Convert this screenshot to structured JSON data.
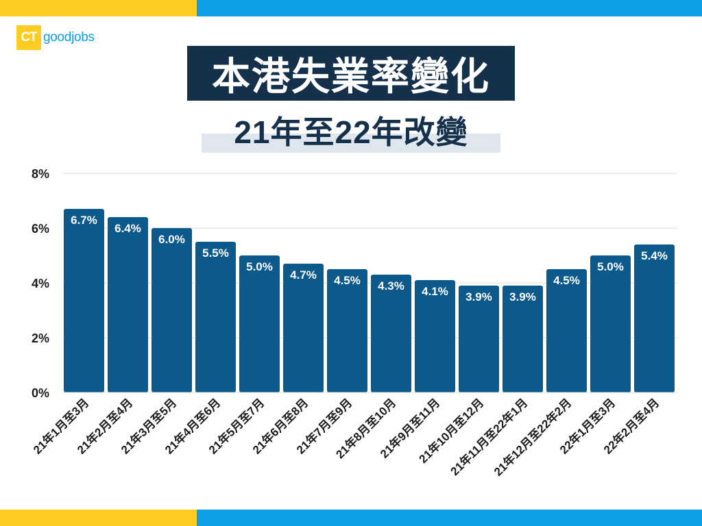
{
  "brand": {
    "logo_mark": "CT",
    "logo_text": "goodjobs",
    "yellow": "#fdcb21",
    "blue": "#0da0e4"
  },
  "title": "本港失業率變化",
  "subtitle": "21年至22年改變",
  "chart_data": {
    "type": "bar",
    "title": "本港失業率變化",
    "subtitle": "21年至22年改變",
    "categories": [
      "21年1月至3月",
      "21年2月至4月",
      "21年3月至5月",
      "21年4月至6月",
      "21年5月至7月",
      "21年6月至8月",
      "21年7月至9月",
      "21年8月至10月",
      "21年9月至11月",
      "21年10月至12月",
      "21年11月至22年1月",
      "21年12月至22年2月",
      "22年1月至3月",
      "22年2月至4月"
    ],
    "values": [
      6.7,
      6.4,
      6.0,
      5.5,
      5.0,
      4.7,
      4.5,
      4.3,
      4.1,
      3.9,
      3.9,
      4.5,
      5.0,
      5.4
    ],
    "value_labels": [
      "6.7%",
      "6.4%",
      "6.0%",
      "5.5%",
      "5.0%",
      "4.7%",
      "4.5%",
      "4.3%",
      "4.1%",
      "3.9%",
      "3.9%",
      "4.5%",
      "5.0%",
      "5.4%"
    ],
    "yticks": [
      0,
      2,
      4,
      6,
      8
    ],
    "ytick_labels": [
      "0%",
      "2%",
      "4%",
      "6%",
      "8%"
    ],
    "ylim": [
      0,
      8
    ],
    "xlabel": "",
    "ylabel": "",
    "grid": true,
    "bar_color": "#0c5a8c"
  }
}
